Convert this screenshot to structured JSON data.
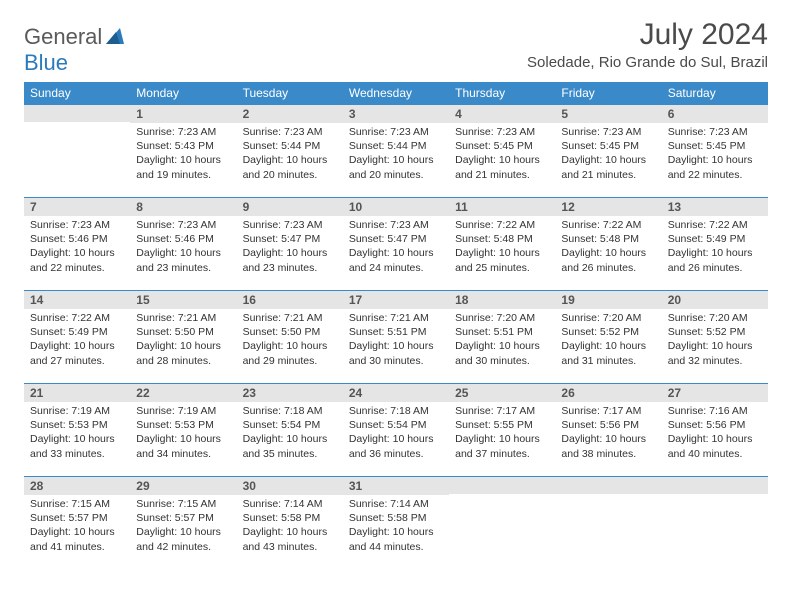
{
  "logo": {
    "word1": "General",
    "word2": "Blue"
  },
  "title": "July 2024",
  "location": "Soledade, Rio Grande do Sul, Brazil",
  "colors": {
    "header_bg": "#3a8ac9",
    "header_fg": "#ffffff",
    "daynum_bg": "#e5e5e5",
    "border": "#3a8ac9",
    "logo_gray": "#5a5a5a",
    "logo_blue": "#2b7bbc"
  },
  "weekday_headers": [
    "Sunday",
    "Monday",
    "Tuesday",
    "Wednesday",
    "Thursday",
    "Friday",
    "Saturday"
  ],
  "first_weekday_index": 1,
  "days_in_month": 31,
  "days": {
    "1": {
      "sunrise": "7:23 AM",
      "sunset": "5:43 PM",
      "daylight": "10 hours and 19 minutes."
    },
    "2": {
      "sunrise": "7:23 AM",
      "sunset": "5:44 PM",
      "daylight": "10 hours and 20 minutes."
    },
    "3": {
      "sunrise": "7:23 AM",
      "sunset": "5:44 PM",
      "daylight": "10 hours and 20 minutes."
    },
    "4": {
      "sunrise": "7:23 AM",
      "sunset": "5:45 PM",
      "daylight": "10 hours and 21 minutes."
    },
    "5": {
      "sunrise": "7:23 AM",
      "sunset": "5:45 PM",
      "daylight": "10 hours and 21 minutes."
    },
    "6": {
      "sunrise": "7:23 AM",
      "sunset": "5:45 PM",
      "daylight": "10 hours and 22 minutes."
    },
    "7": {
      "sunrise": "7:23 AM",
      "sunset": "5:46 PM",
      "daylight": "10 hours and 22 minutes."
    },
    "8": {
      "sunrise": "7:23 AM",
      "sunset": "5:46 PM",
      "daylight": "10 hours and 23 minutes."
    },
    "9": {
      "sunrise": "7:23 AM",
      "sunset": "5:47 PM",
      "daylight": "10 hours and 23 minutes."
    },
    "10": {
      "sunrise": "7:23 AM",
      "sunset": "5:47 PM",
      "daylight": "10 hours and 24 minutes."
    },
    "11": {
      "sunrise": "7:22 AM",
      "sunset": "5:48 PM",
      "daylight": "10 hours and 25 minutes."
    },
    "12": {
      "sunrise": "7:22 AM",
      "sunset": "5:48 PM",
      "daylight": "10 hours and 26 minutes."
    },
    "13": {
      "sunrise": "7:22 AM",
      "sunset": "5:49 PM",
      "daylight": "10 hours and 26 minutes."
    },
    "14": {
      "sunrise": "7:22 AM",
      "sunset": "5:49 PM",
      "daylight": "10 hours and 27 minutes."
    },
    "15": {
      "sunrise": "7:21 AM",
      "sunset": "5:50 PM",
      "daylight": "10 hours and 28 minutes."
    },
    "16": {
      "sunrise": "7:21 AM",
      "sunset": "5:50 PM",
      "daylight": "10 hours and 29 minutes."
    },
    "17": {
      "sunrise": "7:21 AM",
      "sunset": "5:51 PM",
      "daylight": "10 hours and 30 minutes."
    },
    "18": {
      "sunrise": "7:20 AM",
      "sunset": "5:51 PM",
      "daylight": "10 hours and 30 minutes."
    },
    "19": {
      "sunrise": "7:20 AM",
      "sunset": "5:52 PM",
      "daylight": "10 hours and 31 minutes."
    },
    "20": {
      "sunrise": "7:20 AM",
      "sunset": "5:52 PM",
      "daylight": "10 hours and 32 minutes."
    },
    "21": {
      "sunrise": "7:19 AM",
      "sunset": "5:53 PM",
      "daylight": "10 hours and 33 minutes."
    },
    "22": {
      "sunrise": "7:19 AM",
      "sunset": "5:53 PM",
      "daylight": "10 hours and 34 minutes."
    },
    "23": {
      "sunrise": "7:18 AM",
      "sunset": "5:54 PM",
      "daylight": "10 hours and 35 minutes."
    },
    "24": {
      "sunrise": "7:18 AM",
      "sunset": "5:54 PM",
      "daylight": "10 hours and 36 minutes."
    },
    "25": {
      "sunrise": "7:17 AM",
      "sunset": "5:55 PM",
      "daylight": "10 hours and 37 minutes."
    },
    "26": {
      "sunrise": "7:17 AM",
      "sunset": "5:56 PM",
      "daylight": "10 hours and 38 minutes."
    },
    "27": {
      "sunrise": "7:16 AM",
      "sunset": "5:56 PM",
      "daylight": "10 hours and 40 minutes."
    },
    "28": {
      "sunrise": "7:15 AM",
      "sunset": "5:57 PM",
      "daylight": "10 hours and 41 minutes."
    },
    "29": {
      "sunrise": "7:15 AM",
      "sunset": "5:57 PM",
      "daylight": "10 hours and 42 minutes."
    },
    "30": {
      "sunrise": "7:14 AM",
      "sunset": "5:58 PM",
      "daylight": "10 hours and 43 minutes."
    },
    "31": {
      "sunrise": "7:14 AM",
      "sunset": "5:58 PM",
      "daylight": "10 hours and 44 minutes."
    }
  },
  "labels": {
    "sunrise_prefix": "Sunrise: ",
    "sunset_prefix": "Sunset: ",
    "daylight_prefix": "Daylight: "
  }
}
